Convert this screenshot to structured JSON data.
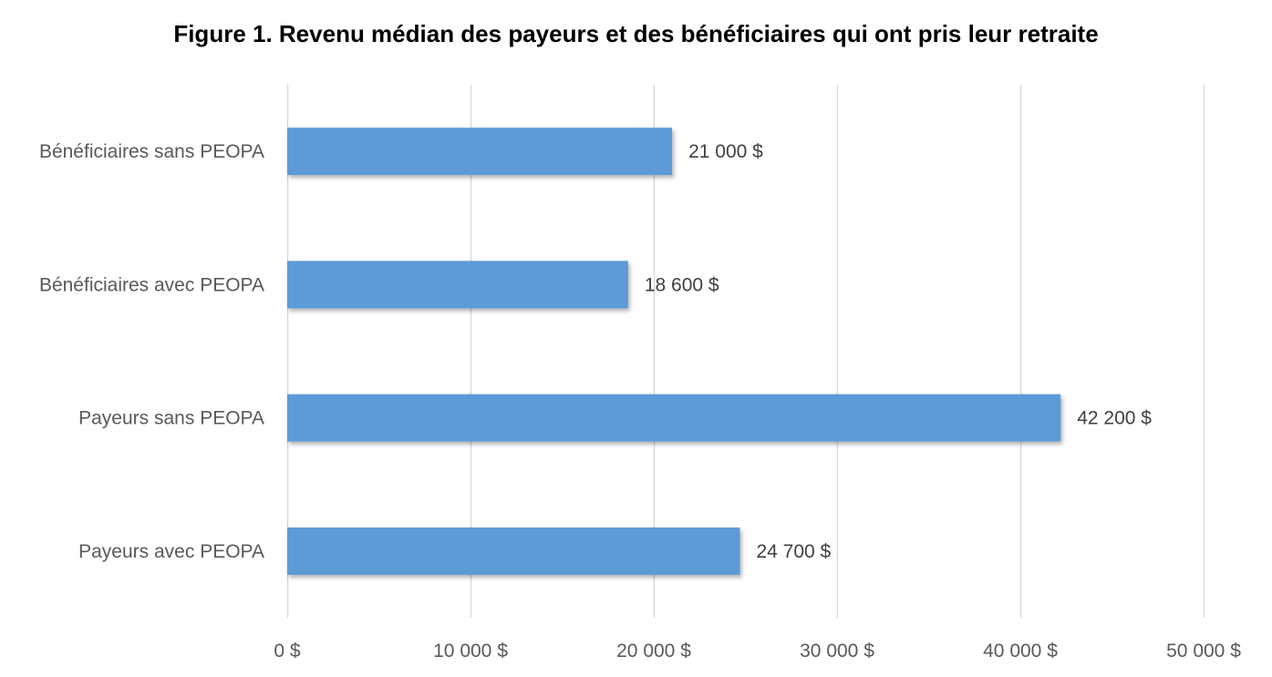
{
  "chart_data": {
    "type": "bar",
    "orientation": "horizontal",
    "title": "Figure 1. Revenu médian des payeurs et des bénéficiaires qui ont pris leur retraite",
    "categories": [
      "Bénéficiaires sans PEOPA",
      "Bénéficiaires avec PEOPA",
      "Payeurs sans PEOPA",
      "Payeurs avec PEOPA"
    ],
    "values": [
      21000,
      18600,
      42200,
      24700
    ],
    "data_labels": [
      "21 000 $",
      "18 600 $",
      "42 200 $",
      "24 700 $"
    ],
    "xlim": [
      0,
      50000
    ],
    "x_ticks": [
      0,
      10000,
      20000,
      30000,
      40000,
      50000
    ],
    "x_tick_labels": [
      "0 $",
      "10 000 $",
      "20 000 $",
      "30 000 $",
      "40 000 $",
      "50 000 $"
    ],
    "xlabel": "",
    "ylabel": "",
    "grid": "vertical",
    "legend": "none",
    "bar_color": "#5b9bd5",
    "grid_color": "#d9d9d9"
  }
}
